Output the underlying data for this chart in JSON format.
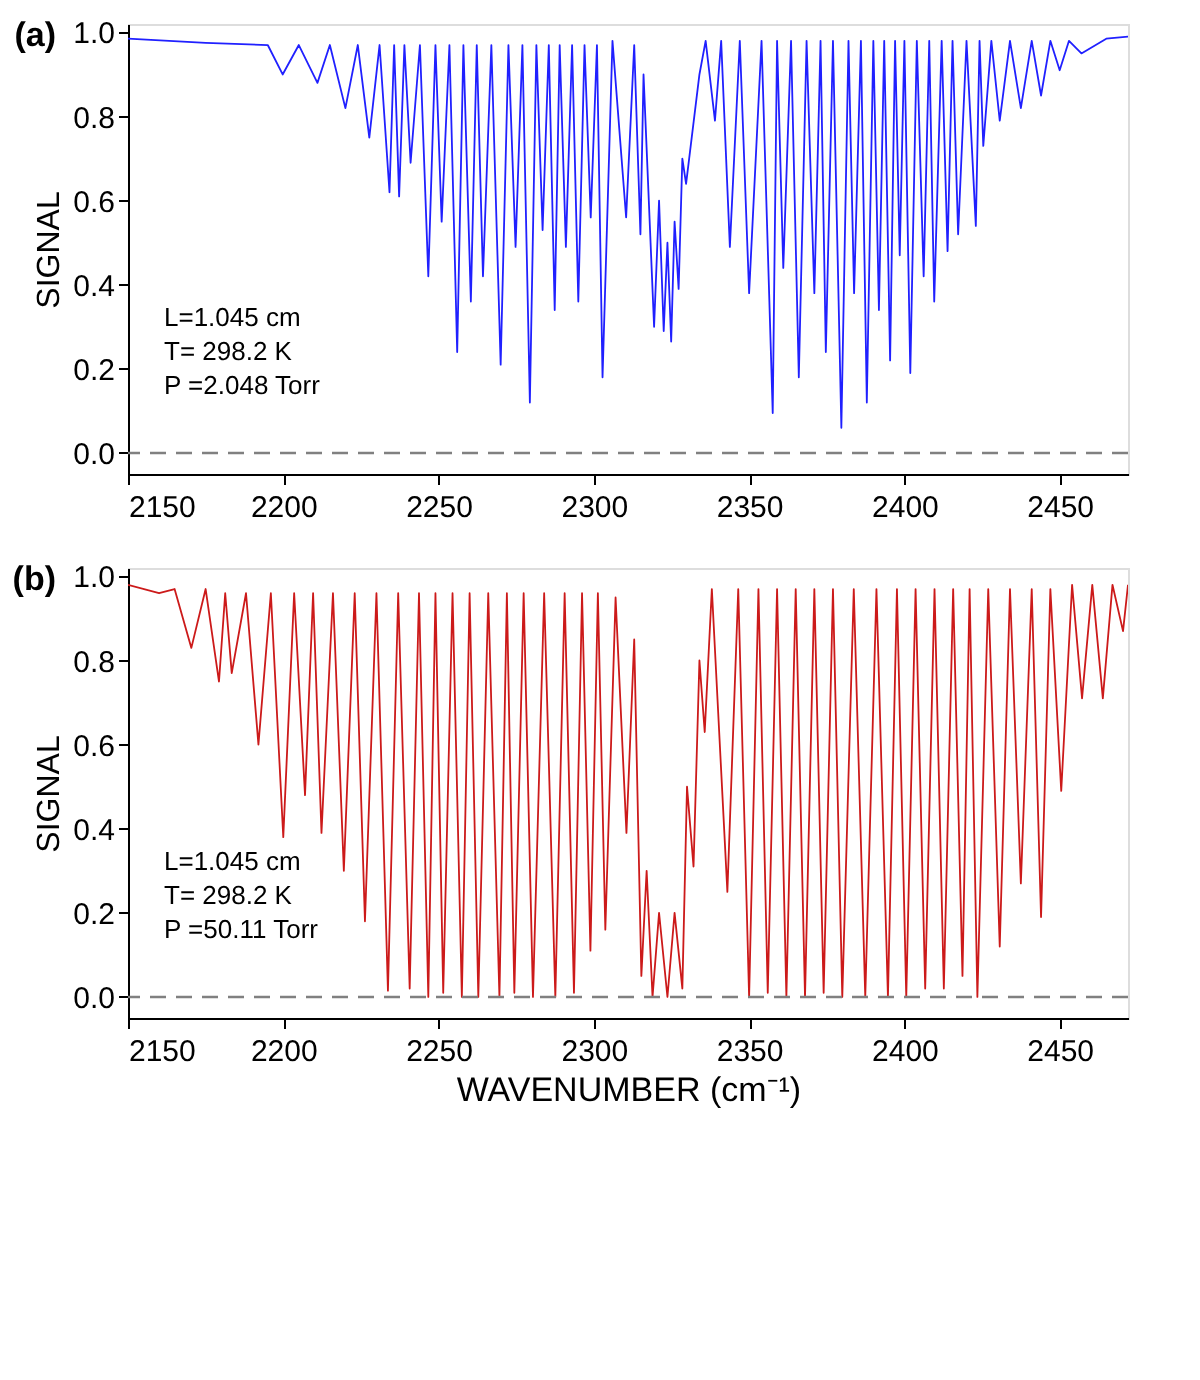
{
  "chart_data": [
    {
      "type": "line",
      "ylabel": "SIGNAL",
      "xlim": [
        2150,
        2472
      ],
      "ylim": [
        -0.05,
        1.02
      ],
      "xticks": [
        2150,
        2200,
        2250,
        2300,
        2350,
        2400,
        2450
      ],
      "yticks": [
        {
          "value": 0,
          "label": "0.0"
        },
        0.2,
        0.4,
        0.6,
        0.8,
        {
          "value": 1,
          "label": "1.0"
        }
      ],
      "grid": false,
      "line_style": "solid",
      "marker": "none",
      "annotations": [
        "(a)",
        "L=1.045 cm",
        "T= 298.2 K",
        "P =2.048 Torr"
      ],
      "ref_lines": [
        {
          "axis": "y",
          "value": 0,
          "color": "#808080",
          "line_style": "dashed"
        }
      ],
      "series": [
        {
          "color": "#2020ff",
          "x": [
            2150,
            2175,
            2195,
            2199.8,
            2205,
            2211,
            2215,
            2220,
            2224,
            2227.7,
            2231,
            2234.2,
            2235.7,
            2237.3,
            2239,
            2241,
            2244,
            2246.7,
            2249,
            2251,
            2253.5,
            2256,
            2258,
            2260.4,
            2262.3,
            2264.3,
            2267,
            2270,
            2272.5,
            2274.8,
            2277,
            2279.4,
            2281.5,
            2283.5,
            2285.5,
            2287.4,
            2289,
            2291,
            2293,
            2295,
            2297,
            2299,
            2301,
            2302.8,
            2306,
            2310.4,
            2313,
            2315,
            2316,
            2319.4,
            2321,
            2322.5,
            2323.7,
            2324.9,
            2326,
            2327.3,
            2328.5,
            2329.7,
            2334,
            2336,
            2339,
            2341,
            2343.8,
            2347,
            2350,
            2354,
            2357.6,
            2359,
            2361,
            2363.5,
            2366,
            2368.5,
            2371,
            2373,
            2374.7,
            2377,
            2379.7,
            2382,
            2383.8,
            2386,
            2387.9,
            2390,
            2391.8,
            2393.5,
            2395.4,
            2397,
            2398.5,
            2400,
            2401.9,
            2404,
            2406.2,
            2408,
            2409.6,
            2412,
            2413.9,
            2415.5,
            2417.3,
            2420,
            2423,
            2424.2,
            2425.4,
            2428,
            2430.7,
            2434,
            2437.5,
            2441,
            2444,
            2447,
            2450,
            2453,
            2457,
            2465,
            2472
          ],
          "values": [
            0.985,
            0.975,
            0.97,
            0.9,
            0.97,
            0.88,
            0.97,
            0.82,
            0.97,
            0.75,
            0.97,
            0.62,
            0.97,
            0.61,
            0.97,
            0.69,
            0.97,
            0.42,
            0.97,
            0.55,
            0.97,
            0.24,
            0.97,
            0.36,
            0.97,
            0.42,
            0.97,
            0.21,
            0.97,
            0.49,
            0.97,
            0.12,
            0.97,
            0.53,
            0.97,
            0.34,
            0.97,
            0.49,
            0.97,
            0.36,
            0.97,
            0.56,
            0.97,
            0.18,
            0.98,
            0.56,
            0.97,
            0.52,
            0.9,
            0.3,
            0.6,
            0.29,
            0.5,
            0.265,
            0.55,
            0.39,
            0.7,
            0.64,
            0.9,
            0.98,
            0.79,
            0.98,
            0.49,
            0.98,
            0.38,
            0.98,
            0.095,
            0.98,
            0.44,
            0.98,
            0.18,
            0.98,
            0.38,
            0.98,
            0.24,
            0.98,
            0.06,
            0.98,
            0.38,
            0.98,
            0.12,
            0.98,
            0.34,
            0.98,
            0.22,
            0.98,
            0.47,
            0.98,
            0.19,
            0.98,
            0.42,
            0.98,
            0.36,
            0.98,
            0.48,
            0.98,
            0.52,
            0.98,
            0.54,
            0.98,
            0.73,
            0.98,
            0.79,
            0.98,
            0.82,
            0.98,
            0.85,
            0.98,
            0.91,
            0.98,
            0.95,
            0.985,
            0.99
          ]
        }
      ]
    },
    {
      "type": "line",
      "xlabel": "WAVENUMBER (cm⁻¹)",
      "ylabel": "SIGNAL",
      "xlim": [
        2150,
        2472
      ],
      "ylim": [
        -0.05,
        1.02
      ],
      "xticks": [
        2150,
        2200,
        2250,
        2300,
        2350,
        2400,
        2450
      ],
      "yticks": [
        {
          "value": 0,
          "label": "0.0"
        },
        0.2,
        0.4,
        0.6,
        0.8,
        {
          "value": 1,
          "label": "1.0"
        }
      ],
      "grid": false,
      "line_style": "solid",
      "marker": "none",
      "annotations": [
        "(b)",
        "L=1.045 cm",
        "T= 298.2 K",
        "P =50.11 Torr"
      ],
      "ref_lines": [
        {
          "axis": "y",
          "value": 0,
          "color": "#808080",
          "line_style": "dashed"
        }
      ],
      "series": [
        {
          "color": "#cc1a1a",
          "x": [
            2150,
            2160,
            2165,
            2170.4,
            2175,
            2179.3,
            2181.3,
            2183.4,
            2188,
            2192,
            2196,
            2200,
            2203.5,
            2207,
            2209.6,
            2212.3,
            2216,
            2219.5,
            2223,
            2226.3,
            2230,
            2233.7,
            2237,
            2240.7,
            2243.7,
            2246.7,
            2249,
            2251.5,
            2254.5,
            2257.5,
            2260,
            2262.8,
            2266,
            2269.6,
            2272,
            2274.4,
            2277.4,
            2280.4,
            2284,
            2287.6,
            2290.6,
            2293.6,
            2296.2,
            2298.9,
            2301.3,
            2303.7,
            2307,
            2310.5,
            2313,
            2315.3,
            2317,
            2318.9,
            2321,
            2323.7,
            2326,
            2328.5,
            2330,
            2332.1,
            2334,
            2335.7,
            2338,
            2343,
            2346.5,
            2350,
            2353,
            2356,
            2359,
            2362,
            2365,
            2368,
            2371,
            2374,
            2377,
            2380,
            2383.7,
            2387.4,
            2391,
            2394.7,
            2397.6,
            2400.6,
            2403.6,
            2406.7,
            2409.7,
            2412.7,
            2415.7,
            2418.7,
            2421,
            2423.5,
            2427,
            2430.7,
            2434,
            2437.5,
            2441,
            2444,
            2447,
            2450.5,
            2454,
            2457.2,
            2460.5,
            2463.9,
            2467,
            2470.4,
            2472
          ],
          "values": [
            0.98,
            0.96,
            0.97,
            0.83,
            0.97,
            0.75,
            0.96,
            0.77,
            0.96,
            0.6,
            0.96,
            0.38,
            0.96,
            0.48,
            0.96,
            0.39,
            0.96,
            0.3,
            0.96,
            0.18,
            0.96,
            0.015,
            0.96,
            0.02,
            0.96,
            0,
            0.96,
            0.01,
            0.96,
            0,
            0.96,
            0,
            0.96,
            0,
            0.96,
            0.01,
            0.96,
            0,
            0.96,
            0,
            0.96,
            0.01,
            0.96,
            0.11,
            0.96,
            0.16,
            0.95,
            0.39,
            0.85,
            0.05,
            0.3,
            0,
            0.2,
            0,
            0.2,
            0.02,
            0.5,
            0.31,
            0.8,
            0.63,
            0.97,
            0.25,
            0.97,
            0,
            0.97,
            0.01,
            0.97,
            0,
            0.97,
            0,
            0.97,
            0.01,
            0.97,
            0,
            0.97,
            0,
            0.97,
            0,
            0.97,
            0,
            0.97,
            0.02,
            0.97,
            0.02,
            0.97,
            0.05,
            0.97,
            0,
            0.97,
            0.12,
            0.97,
            0.27,
            0.97,
            0.19,
            0.97,
            0.49,
            0.98,
            0.71,
            0.98,
            0.71,
            0.98,
            0.87,
            0.98
          ]
        }
      ]
    }
  ]
}
